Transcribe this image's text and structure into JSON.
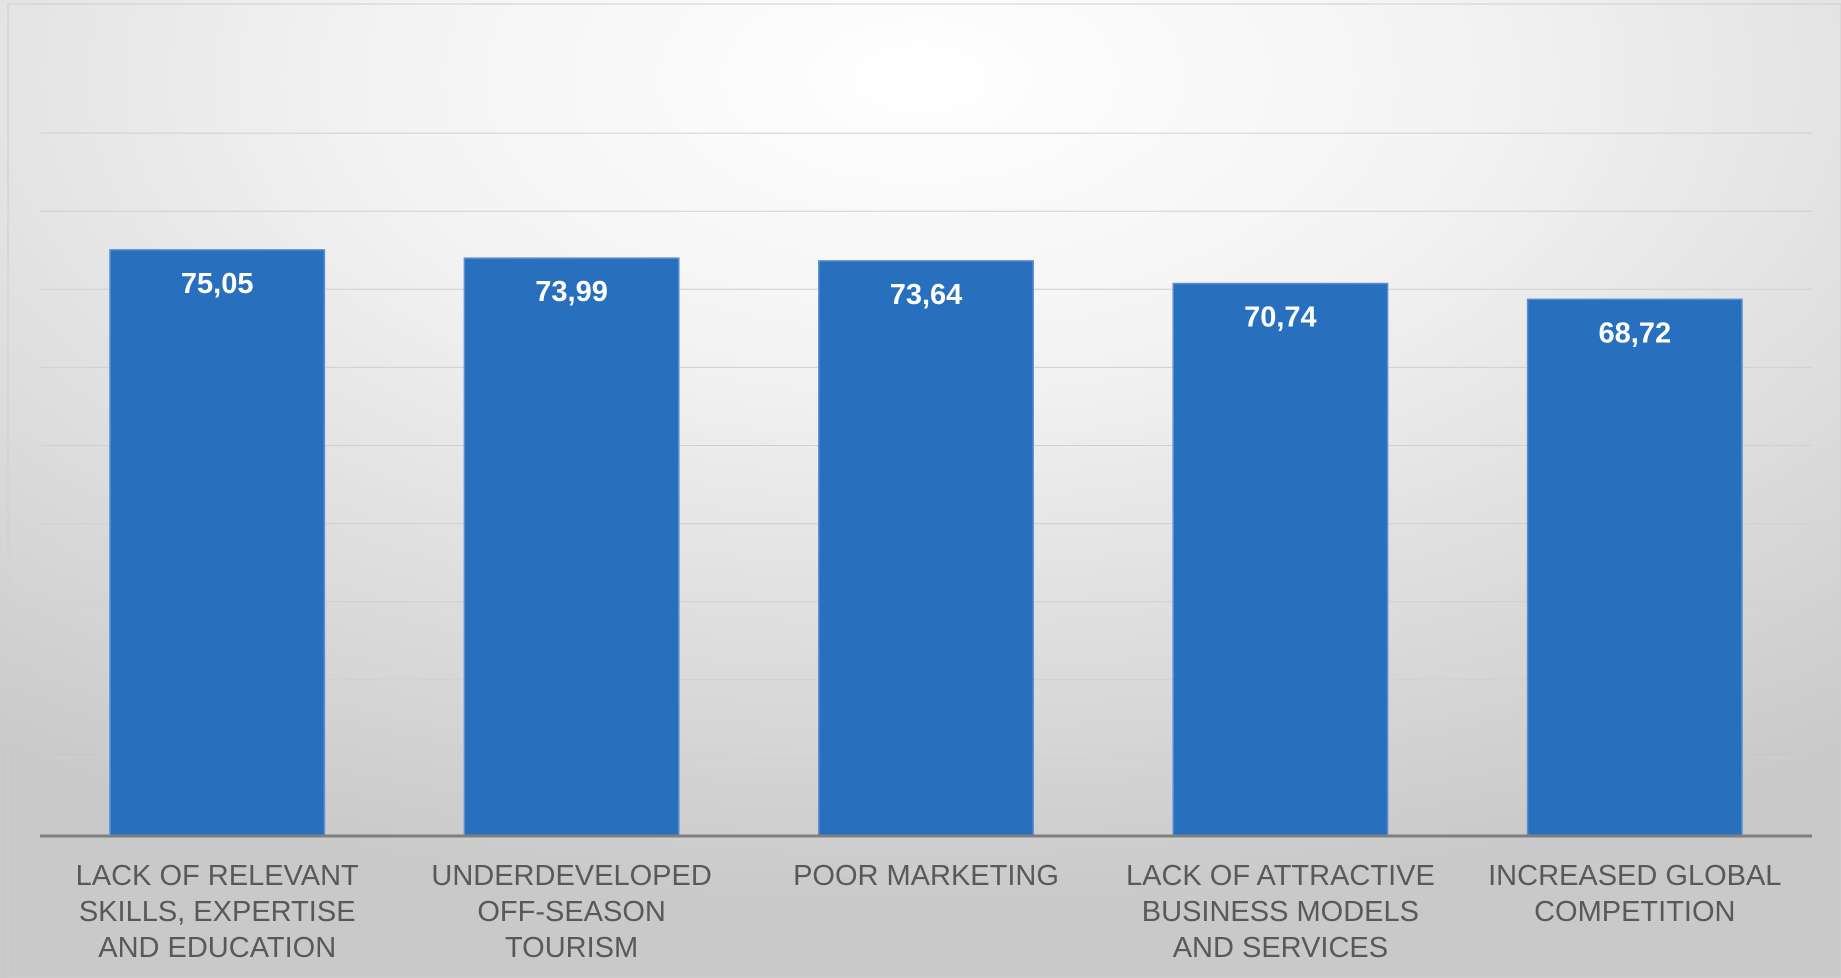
{
  "chart_data": {
    "type": "bar",
    "categories": [
      [
        "LACK OF RELEVANT",
        "SKILLS, EXPERTISE",
        "AND EDUCATION"
      ],
      [
        "UNDERDEVELOPED",
        "OFF-SEASON",
        "TOURISM"
      ],
      [
        "POOR MARKETING"
      ],
      [
        "LACK OF ATTRACTIVE",
        "BUSINESS MODELS",
        "AND SERVICES"
      ],
      [
        "INCREASED GLOBAL",
        "COMPETITION"
      ]
    ],
    "values": [
      75.05,
      73.99,
      73.64,
      70.74,
      68.72
    ],
    "value_labels": [
      "75,05",
      "73,99",
      "73,64",
      "70,74",
      "68,72"
    ],
    "ylim": [
      0,
      100
    ],
    "gridlines_step": 10,
    "grid": true,
    "bar_color": "#2870be",
    "label_color": "#ffffff",
    "axis_label_color": "#595959"
  }
}
